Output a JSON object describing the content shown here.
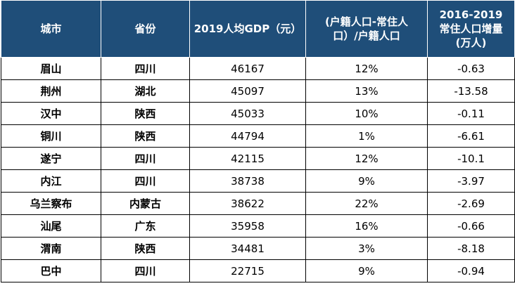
{
  "headers": {
    "city": "城市",
    "province": "省份",
    "gdp": "2019人均GDP（元）",
    "ratio_line1": "(户籍人口-常住人",
    "ratio_line2": "口）/户籍人口",
    "growth_line1": "2016-2019",
    "growth_line2": "常住人口增量",
    "growth_line3": "(万人)"
  },
  "rows": [
    {
      "city": "眉山",
      "province": "四川",
      "gdp": "46167",
      "ratio": "12%",
      "growth": "-0.63"
    },
    {
      "city": "荆州",
      "province": "湖北",
      "gdp": "45097",
      "ratio": "13%",
      "growth": "-13.58"
    },
    {
      "city": "汉中",
      "province": "陕西",
      "gdp": "45033",
      "ratio": "10%",
      "growth": "-0.11"
    },
    {
      "city": "铜川",
      "province": "陕西",
      "gdp": "44794",
      "ratio": "1%",
      "growth": "-6.61"
    },
    {
      "city": "遂宁",
      "province": "四川",
      "gdp": "42115",
      "ratio": "12%",
      "growth": "-10.1"
    },
    {
      "city": "内江",
      "province": "四川",
      "gdp": "38738",
      "ratio": "9%",
      "growth": "-3.97"
    },
    {
      "city": "乌兰察布",
      "province": "内蒙古",
      "gdp": "38622",
      "ratio": "22%",
      "growth": "-2.69"
    },
    {
      "city": "汕尾",
      "province": "广东",
      "gdp": "35958",
      "ratio": "16%",
      "growth": "-0.66"
    },
    {
      "city": "渭南",
      "province": "陕西",
      "gdp": "34481",
      "ratio": "3%",
      "growth": "-8.18"
    },
    {
      "city": "巴中",
      "province": "四川",
      "gdp": "22715",
      "ratio": "9%",
      "growth": "-0.94"
    }
  ],
  "colors": {
    "header_bg": "#1f4e79",
    "header_text": "#ffffff",
    "border": "#000000"
  }
}
